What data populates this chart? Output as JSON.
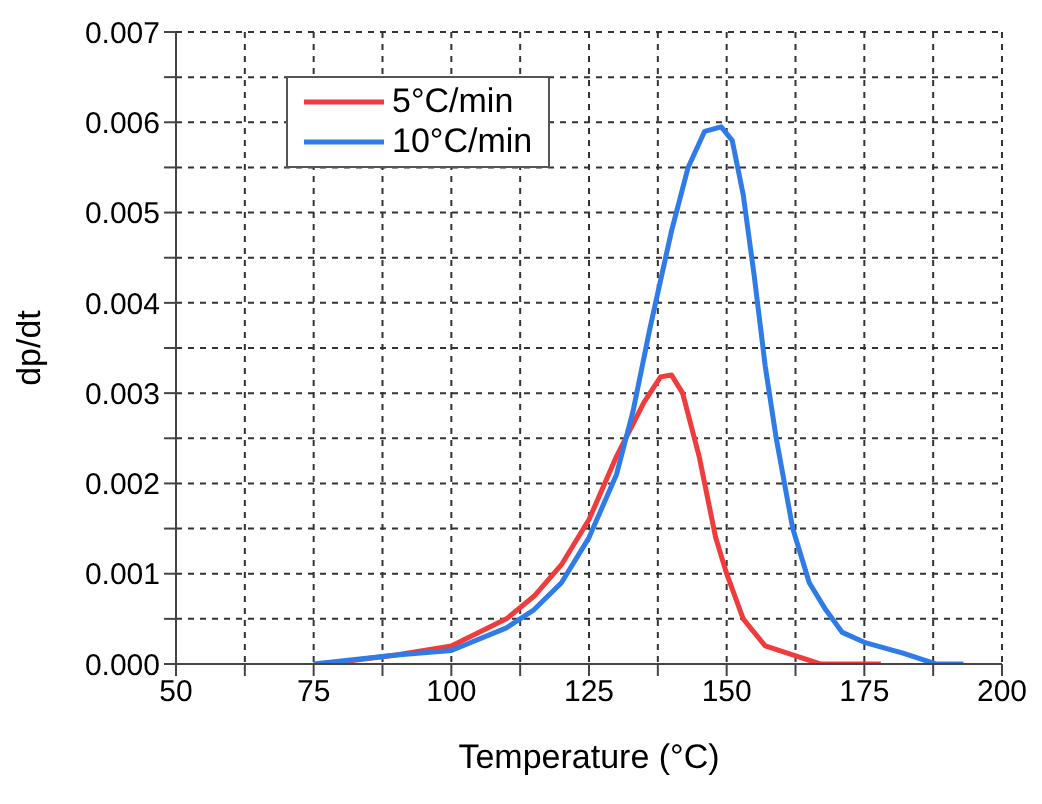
{
  "chart_data": {
    "type": "line",
    "xlabel": "Temperature (°C)",
    "ylabel": "dp/dt",
    "xlim": [
      50,
      200
    ],
    "xticks": [
      50,
      {
        "value": 62.5,
        "label": null
      },
      75,
      {
        "value": 87.5,
        "label": null
      },
      100,
      {
        "value": 112.5,
        "label": null
      },
      125,
      {
        "value": 137.5,
        "label": null
      },
      150,
      {
        "value": 162.5,
        "label": null
      },
      175,
      {
        "value": 187.5,
        "label": null
      },
      200
    ],
    "ylim": [
      0,
      0.007
    ],
    "yticks": [
      {
        "value": 0,
        "label": "0.000"
      },
      {
        "value": 0.0005,
        "label": null
      },
      {
        "value": 0.001,
        "label": "0.001"
      },
      {
        "value": 0.0015,
        "label": null
      },
      {
        "value": 0.002,
        "label": "0.002"
      },
      {
        "value": 0.0025,
        "label": null
      },
      {
        "value": 0.003,
        "label": "0.003"
      },
      {
        "value": 0.0035,
        "label": null
      },
      {
        "value": 0.004,
        "label": "0.004"
      },
      {
        "value": 0.0045,
        "label": null
      },
      {
        "value": 0.005,
        "label": "0.005"
      },
      {
        "value": 0.0055,
        "label": null
      },
      {
        "value": 0.006,
        "label": "0.006"
      },
      {
        "value": 0.0065,
        "label": null
      },
      {
        "value": 0.007,
        "label": "0.007"
      }
    ],
    "grid": true,
    "legend": "top left",
    "marker": "none",
    "line_style": "solid",
    "series": [
      {
        "name": "5°C/min",
        "color": "#f03c3c",
        "x": [
          77,
          90,
          100,
          110,
          115,
          120,
          125,
          130,
          135,
          138,
          140,
          142,
          145,
          148,
          150,
          153,
          157,
          162,
          167,
          178
        ],
        "values": [
          0,
          0.0001,
          0.0002,
          0.0005,
          0.00075,
          0.0011,
          0.0016,
          0.0023,
          0.0029,
          0.00318,
          0.0032,
          0.003,
          0.0023,
          0.0014,
          0.001,
          0.0005,
          0.0002,
          0.0001,
          0,
          0
        ]
      },
      {
        "name": "10°C/min",
        "color": "#2f7be8",
        "x": [
          75,
          90,
          100,
          110,
          115,
          120,
          125,
          130,
          133,
          136,
          140,
          143,
          146,
          149,
          151,
          153,
          155,
          157,
          159,
          162,
          165,
          168,
          171,
          175,
          182,
          188,
          193
        ],
        "values": [
          0,
          0.0001,
          0.00015,
          0.0004,
          0.0006,
          0.0009,
          0.0014,
          0.0021,
          0.0028,
          0.0037,
          0.0048,
          0.0055,
          0.0059,
          0.00595,
          0.0058,
          0.0052,
          0.0043,
          0.0033,
          0.0025,
          0.0015,
          0.0009,
          0.0006,
          0.00035,
          0.00024,
          0.00012,
          0,
          0
        ]
      }
    ]
  }
}
